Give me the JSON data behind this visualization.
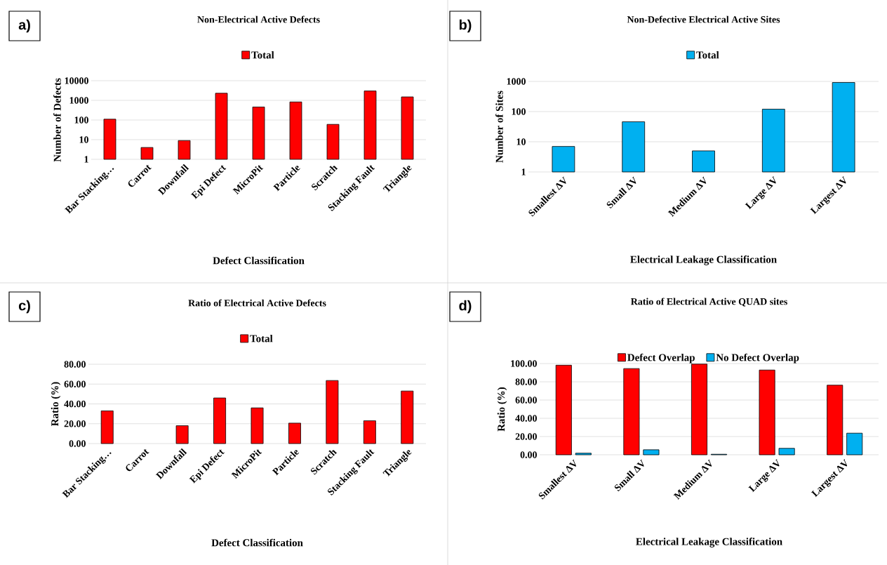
{
  "chart_data": [
    {
      "type": "bar",
      "title": "Non-Electrical Active Defects",
      "xlabel": "Defect Classification",
      "ylabel": "Number of Defects",
      "annotations": [
        "a)"
      ],
      "categories": [
        "Bar Stacking…",
        "Carrot",
        "Downfall",
        "Epi Defect",
        "MicroPit",
        "Particle",
        "Scratch",
        "Stacking Fault",
        "Triangle"
      ],
      "series": [
        {
          "name": "Total",
          "color": "#ff0000",
          "values": [
            110,
            4,
            9,
            2300,
            460,
            830,
            60,
            3000,
            1500
          ]
        }
      ],
      "log": true,
      "ylim": [
        1,
        10000
      ],
      "yticks": [
        1,
        10,
        100,
        1000,
        10000
      ],
      "grid": "y",
      "legend": "top"
    },
    {
      "type": "bar",
      "title": "Non-Defective Electrical Active Sites",
      "xlabel": "Electrical Leakage Classification",
      "ylabel": "Number of Sites",
      "annotations": [
        "b)"
      ],
      "categories": [
        "Smallest ΔV",
        "Small ΔV",
        "Medium ΔV",
        "Large ΔV",
        "Largest ΔV"
      ],
      "series": [
        {
          "name": "Total",
          "color": "#00b0f0",
          "values": [
            7,
            46,
            5,
            120,
            920
          ]
        }
      ],
      "log": true,
      "ylim": [
        1,
        1000
      ],
      "yticks": [
        1,
        10,
        100,
        1000
      ],
      "grid": "y",
      "legend": "top"
    },
    {
      "type": "bar",
      "title": "Ratio of Electrical Active Defects",
      "xlabel": "Defect Classification",
      "ylabel": "Ratio (%)",
      "annotations": [
        "c)"
      ],
      "categories": [
        "Bar Stacking…",
        "Carrot",
        "Downfall",
        "Epi Defect",
        "MicroPit",
        "Particle",
        "Scratch",
        "Stacking Fault",
        "Triangle"
      ],
      "series": [
        {
          "name": "Total",
          "color": "#ff0000",
          "values": [
            33,
            0,
            18,
            46,
            36,
            20.6,
            63.6,
            23,
            53
          ]
        }
      ],
      "ylim": [
        0,
        80
      ],
      "yticks": [
        {
          "value": 0,
          "label": "0.00"
        },
        {
          "value": 20,
          "label": "20.00"
        },
        {
          "value": 40,
          "label": "40.00"
        },
        {
          "value": 60,
          "label": "60.00"
        },
        {
          "value": 80,
          "label": "80.00"
        }
      ],
      "grid": "y",
      "legend": "top"
    },
    {
      "type": "bar",
      "title": "Ratio of Electrical Active QUAD sites",
      "xlabel": "Electrical Leakage Classification",
      "ylabel": "Ratio (%)",
      "annotations": [
        "d)"
      ],
      "categories": [
        "Smallest ΔV",
        "Small ΔV",
        "Medium ΔV",
        "Large ΔV",
        "Largest ΔV"
      ],
      "series": [
        {
          "name": "Defect Overlap",
          "color": "#ff0000",
          "values": [
            98.2,
            94.5,
            99.4,
            92.9,
            76.3
          ]
        },
        {
          "name": "No Defect Overlap",
          "color": "#00b0f0",
          "values": [
            1.8,
            5.5,
            0.6,
            7.1,
            23.7
          ]
        }
      ],
      "ylim": [
        0,
        100
      ],
      "yticks": [
        {
          "value": 0,
          "label": "0.00"
        },
        {
          "value": 20,
          "label": "20.00"
        },
        {
          "value": 40,
          "label": "40.00"
        },
        {
          "value": 60,
          "label": "60.00"
        },
        {
          "value": 80,
          "label": "80.00"
        },
        {
          "value": 100,
          "label": "100.00"
        }
      ],
      "grid": "y",
      "legend": "top"
    }
  ]
}
